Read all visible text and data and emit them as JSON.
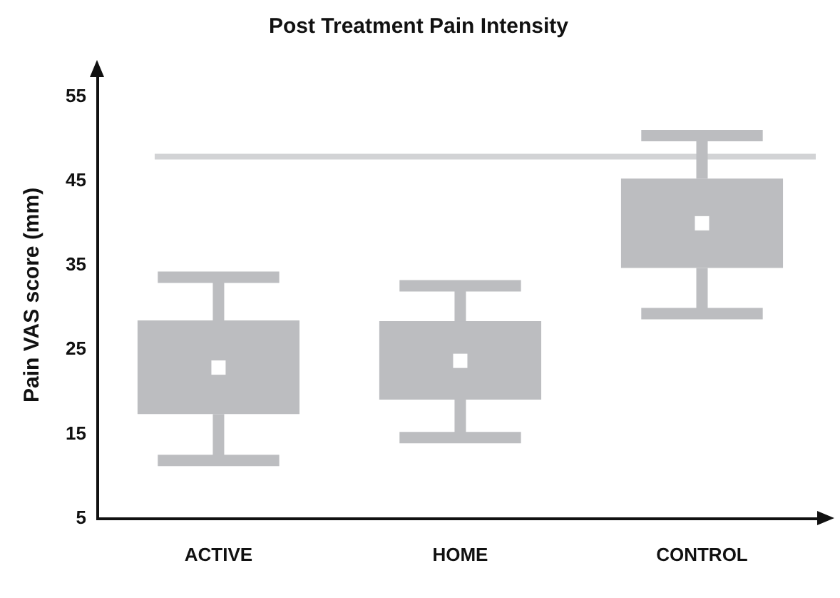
{
  "chart_data": {
    "type": "box",
    "title": "Post Treatment Pain Intensity",
    "ylabel": "Pain VAS score (mm)",
    "categories": [
      "ACTIVE",
      "HOME",
      "CONTROL"
    ],
    "boxes": [
      {
        "low": 11.9,
        "q1": 17.4,
        "median": 22.9,
        "q3": 28.5,
        "high": 33.6
      },
      {
        "low": 14.6,
        "q1": 19.1,
        "median": 23.7,
        "q3": 28.4,
        "high": 32.6
      },
      {
        "low": 29.3,
        "q1": 34.7,
        "median": 40.0,
        "q3": 45.3,
        "high": 50.4
      }
    ],
    "color": "#bcbdc0",
    "ylim": [
      5,
      58
    ],
    "yticks": [
      5,
      15,
      25,
      35,
      45,
      55
    ],
    "ref_lines": [
      {
        "axis": "y",
        "value": 47.9,
        "color": "#d2d3d5"
      }
    ]
  }
}
